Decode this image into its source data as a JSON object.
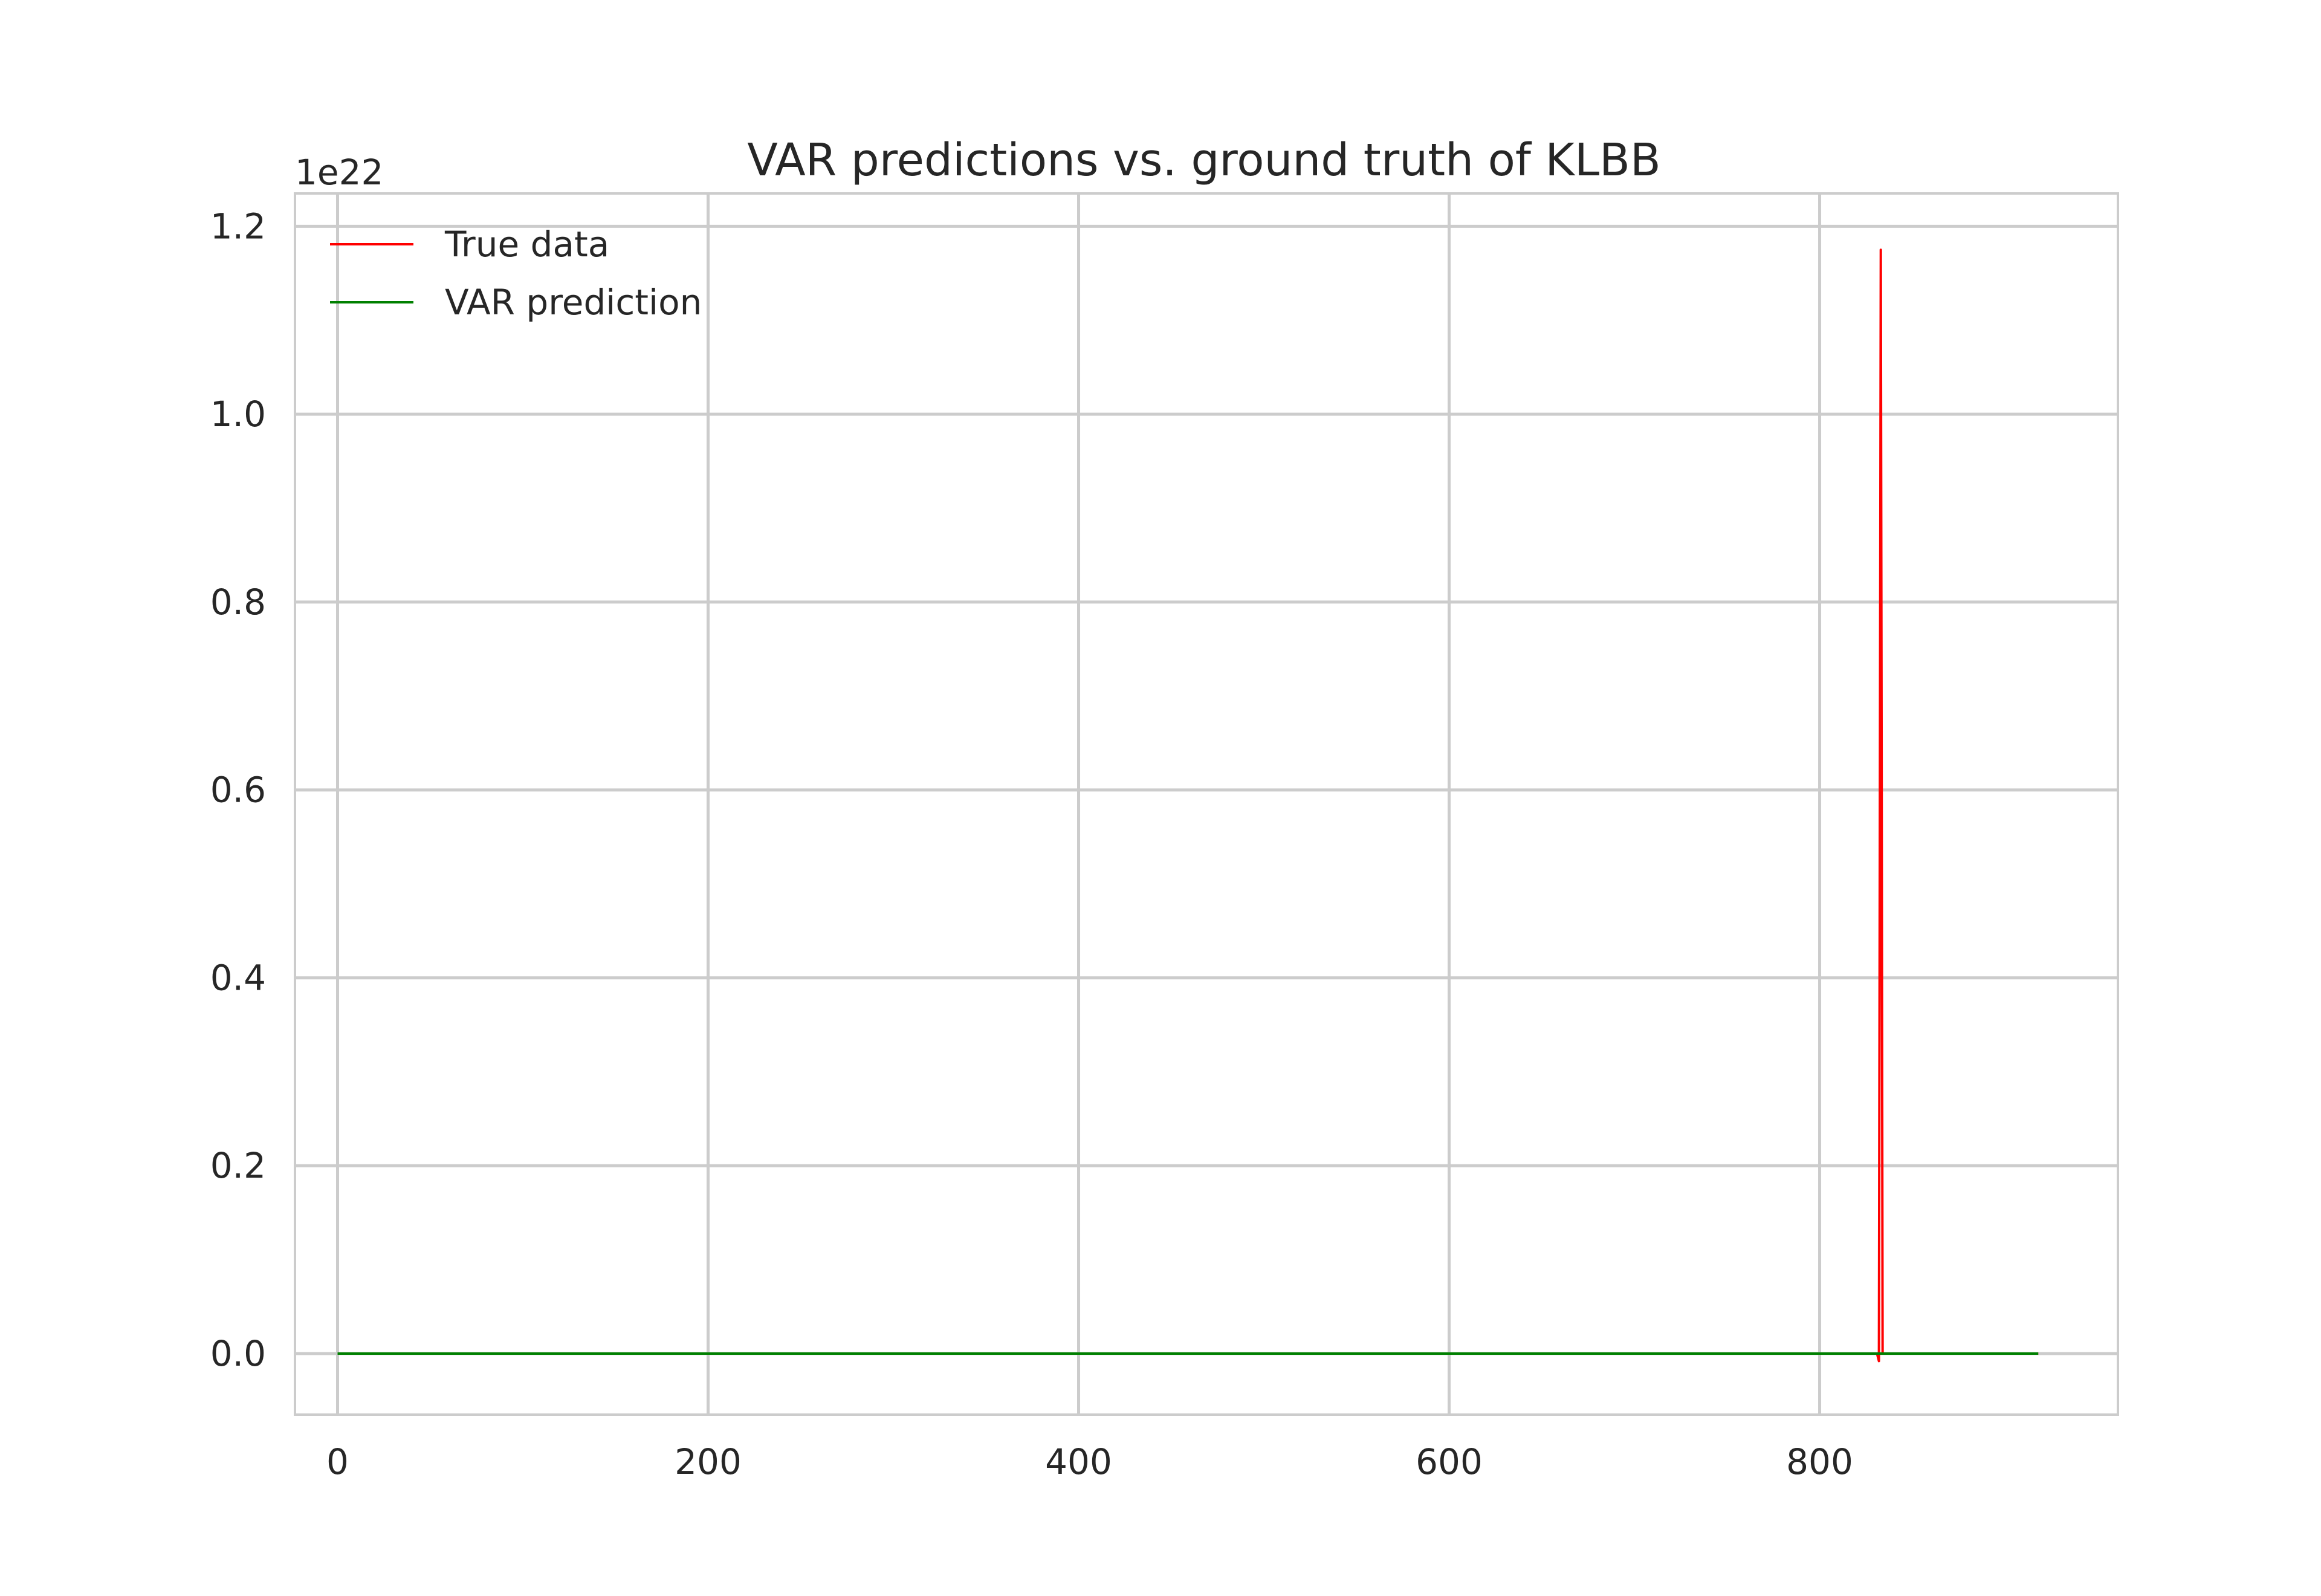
{
  "chart_data": {
    "type": "line",
    "title": "VAR predictions vs. ground truth of KLBB",
    "xlabel": "",
    "ylabel": "",
    "y_offset_label": "1e22",
    "xlim": [
      -23,
      961
    ],
    "ylim": [
      -0.065,
      1.235
    ],
    "x_ticks": [
      0,
      200,
      400,
      600,
      800
    ],
    "x_tick_labels": [
      "0",
      "200",
      "400",
      "600",
      "800"
    ],
    "y_ticks": [
      0.0,
      0.2,
      0.4,
      0.6,
      0.8,
      1.0,
      1.2
    ],
    "y_tick_labels": [
      "0.0",
      "0.2",
      "0.4",
      "0.6",
      "0.8",
      "1.0",
      "1.2"
    ],
    "grid": true,
    "legend_position": "top-left",
    "series": [
      {
        "name": "True data",
        "color": "#ff0000",
        "x": [
          0,
          831,
          832,
          833,
          834,
          835,
          918
        ],
        "y": [
          0.0,
          0.0,
          -0.008,
          1.175,
          0.0,
          0.0,
          0.0
        ]
      },
      {
        "name": "VAR prediction",
        "color": "#008000",
        "x": [
          0,
          918
        ],
        "y": [
          0.0,
          0.0
        ]
      }
    ]
  }
}
